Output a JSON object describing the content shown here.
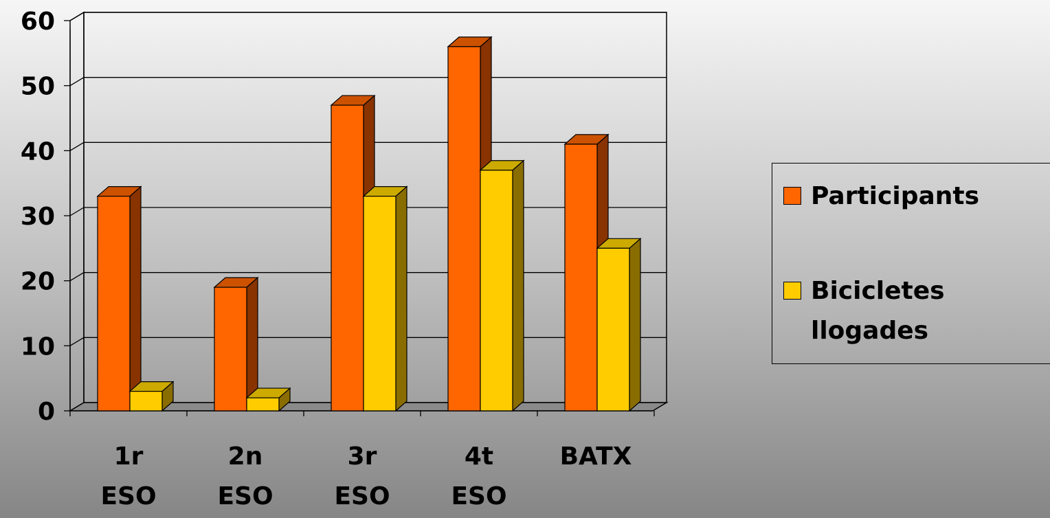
{
  "chart_data": {
    "type": "bar",
    "style": "3d-clustered-column",
    "categories": [
      "1r\nESO",
      "2n\nESO",
      "3r\nESO",
      "4t\nESO",
      "BATX"
    ],
    "series": [
      {
        "name": "Participants",
        "values": [
          33,
          19,
          47,
          56,
          41
        ],
        "color": "#ff6600",
        "side_color": "#883300",
        "top_color": "#cc5200"
      },
      {
        "name": "Bicicletes\nllogades",
        "values": [
          3,
          2,
          33,
          37,
          25
        ],
        "color": "#ffcc00",
        "side_color": "#8a6d00",
        "top_color": "#ccaa00"
      }
    ],
    "ylim": [
      0,
      60
    ],
    "yticks": [
      0,
      10,
      20,
      30,
      40,
      50,
      60
    ],
    "grid": true,
    "legend_position": "right",
    "title": "",
    "xlabel": "",
    "ylabel": ""
  }
}
